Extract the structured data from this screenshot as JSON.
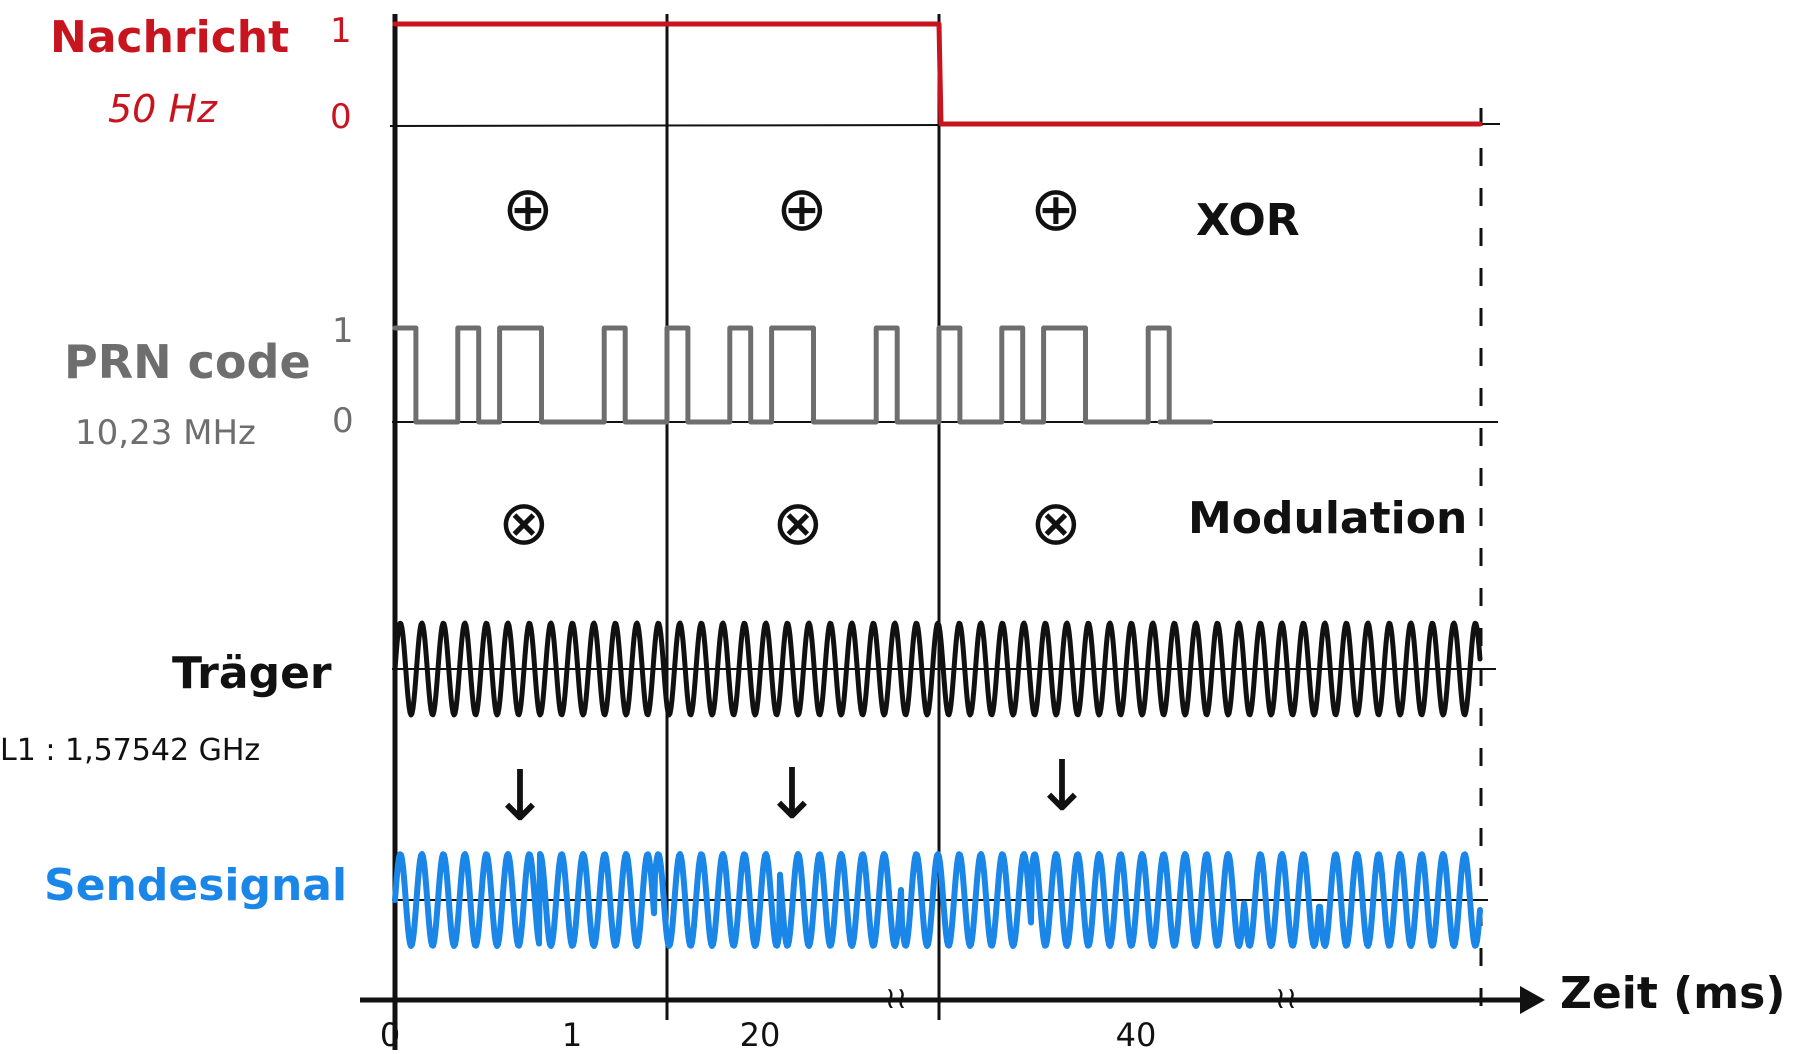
{
  "labels": {
    "message_title": "Nachricht",
    "message_freq": "50 Hz",
    "prn_title": "PRN code",
    "prn_freq": "10,23 MHz",
    "carrier_title": "Träger",
    "carrier_freq": "L1 : 1,57542 GHz",
    "send_title": "Sendesignal",
    "xor_label": "XOR",
    "modulation_label": "Modulation",
    "time_axis_label": "Zeit (ms)",
    "level_one": "1",
    "level_zero": "0"
  },
  "symbols": {
    "xor_symbol": "⊕",
    "multiply_symbol": "⊗",
    "arrow_down": "↓",
    "axis_break": "≀≀"
  },
  "time_ticks": [
    "0",
    "1",
    "20",
    "40"
  ],
  "colors": {
    "message": "#c8141e",
    "prn": "#6e6e6e",
    "carrier": "#111111",
    "send": "#1a86e8",
    "axis": "#111111"
  },
  "chart_data": {
    "type": "line",
    "series": [
      {
        "name": "Nachricht",
        "segments": [
          [
            0,
            1
          ],
          [
            2,
            1
          ],
          [
            2,
            0
          ],
          [
            4,
            0
          ]
        ]
      },
      {
        "name": "PRN code",
        "period_bits": [
          1,
          0,
          0,
          1,
          0,
          1,
          1,
          0,
          0,
          0,
          1,
          0,
          0
        ]
      }
    ]
  }
}
